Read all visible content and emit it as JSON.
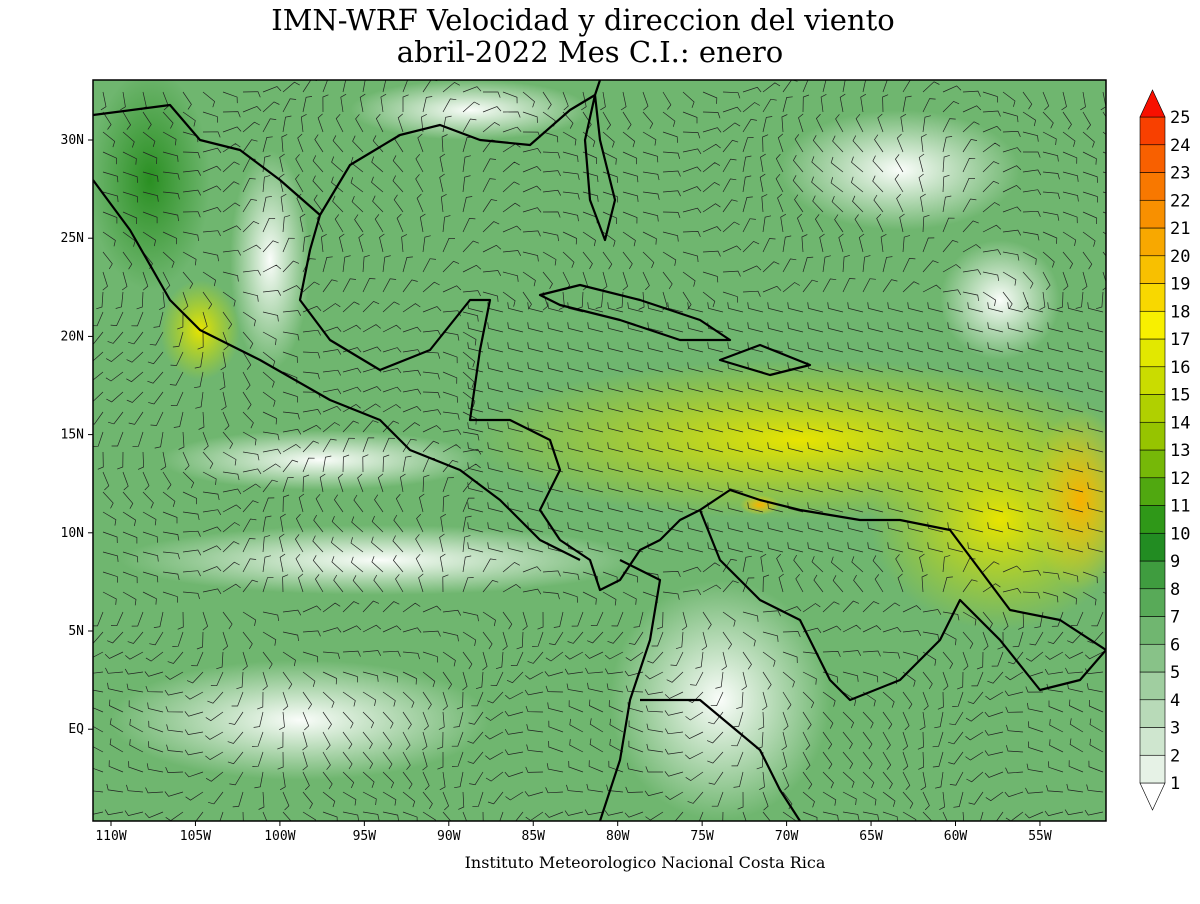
{
  "title": [
    "IMN-WRF Velocidad y direccion del viento",
    "abril-2022 Mes C.I.: enero"
  ],
  "map": {
    "x_labels": [
      "110W",
      "105W",
      "100W",
      "95W",
      "90W",
      "85W",
      "80W",
      "75W",
      "70W",
      "65W",
      "60W",
      "55W"
    ],
    "y_labels": [
      "30N",
      "25N",
      "20N",
      "15N",
      "10N",
      "5N",
      "EQ"
    ]
  },
  "colorbar": {
    "levels": [
      1,
      2,
      3,
      4,
      5,
      6,
      7,
      8,
      9,
      10,
      11,
      12,
      13,
      14,
      15,
      16,
      17,
      18,
      19,
      20,
      21,
      22,
      23,
      24,
      25
    ],
    "colors": [
      "#ffffff",
      "#e6f2e6",
      "#cfe6cf",
      "#b8dab8",
      "#a0cea0",
      "#88c288",
      "#70b670",
      "#58aa58",
      "#3f9c3f",
      "#228c22",
      "#2f9818",
      "#50a810",
      "#76b808",
      "#96c400",
      "#b0d000",
      "#cadc00",
      "#e2e800",
      "#f8f000",
      "#f8d800",
      "#f8c000",
      "#f8a800",
      "#f89000",
      "#f87800",
      "#f86000",
      "#f84000",
      "#f81000"
    ]
  },
  "footer": "Instituto Meteorologico Nacional Costa Rica"
}
